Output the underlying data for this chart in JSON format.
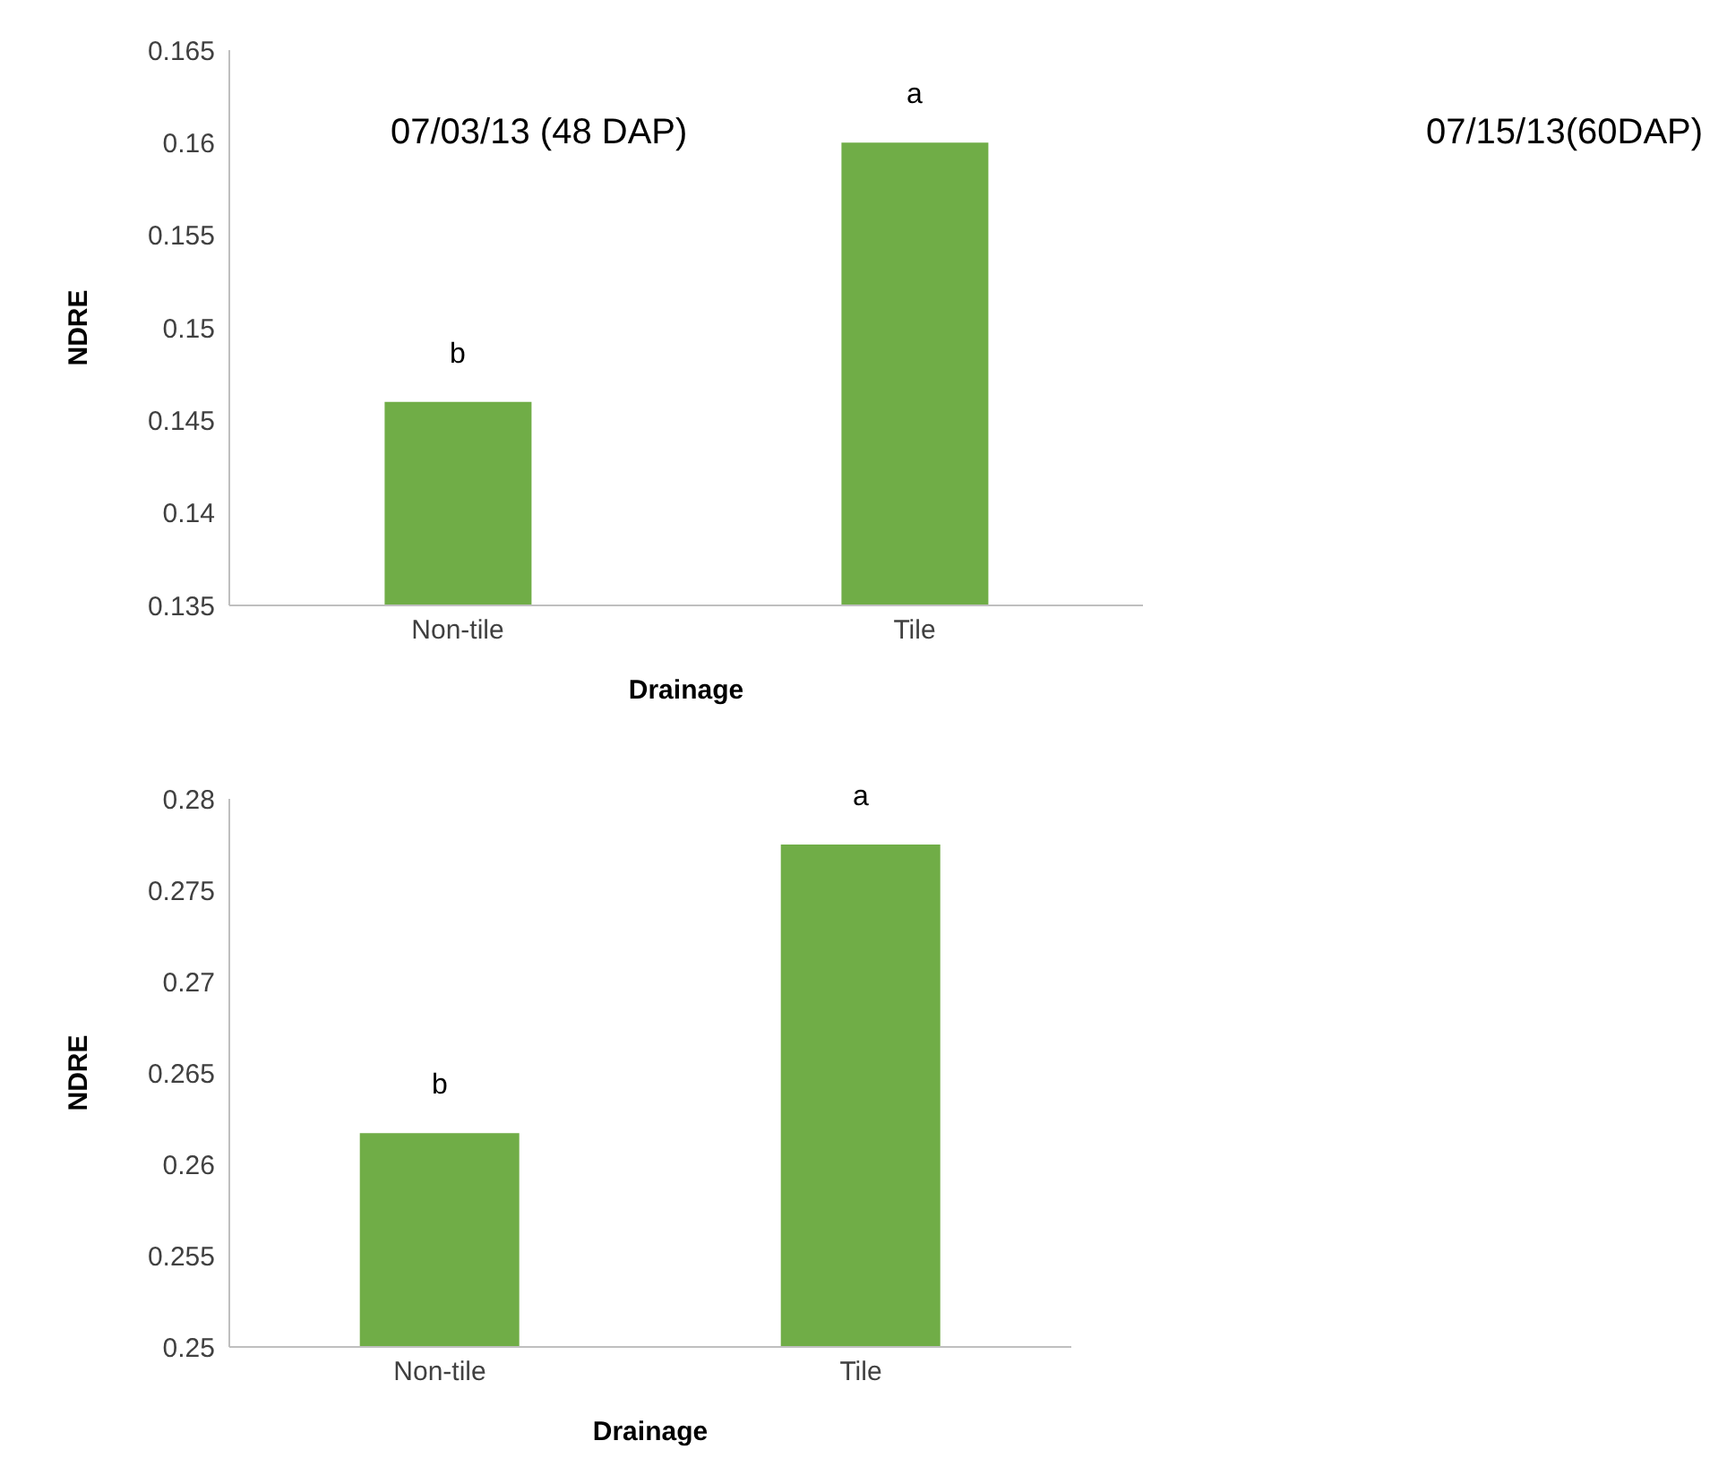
{
  "chart_data": [
    {
      "type": "bar",
      "title": "07/03/13 (48 DAP)",
      "xlabel": "Drainage",
      "ylabel": "NDRE",
      "categories": [
        "Non-tile",
        "Tile"
      ],
      "values": [
        0.146,
        0.16
      ],
      "color": "#70ad47",
      "ylim": [
        0.135,
        0.165
      ],
      "yticks": [
        0.135,
        0.14,
        0.145,
        0.15,
        0.155,
        0.16,
        0.165
      ],
      "grid": false,
      "legend": false,
      "annotations": [
        {
          "text": "b",
          "x": "Non-tile",
          "y": 0.146
        },
        {
          "text": "a",
          "x": "Tile",
          "y": 0.16
        },
        "07/15/13(60DAP)"
      ]
    },
    {
      "type": "bar",
      "xlabel": "Drainage",
      "ylabel": "NDRE",
      "categories": [
        "Non-tile",
        "Tile"
      ],
      "values": [
        0.2617,
        0.2775
      ],
      "color": "#70ad47",
      "ylim": [
        0.25,
        0.28
      ],
      "yticks": [
        0.25,
        0.255,
        0.26,
        0.265,
        0.27,
        0.275,
        0.28
      ],
      "grid": false,
      "legend": false,
      "annotations": [
        {
          "text": "b",
          "x": "Non-tile",
          "y": 0.2617
        },
        {
          "text": "a",
          "x": "Tile",
          "y": 0.2775
        }
      ]
    }
  ]
}
